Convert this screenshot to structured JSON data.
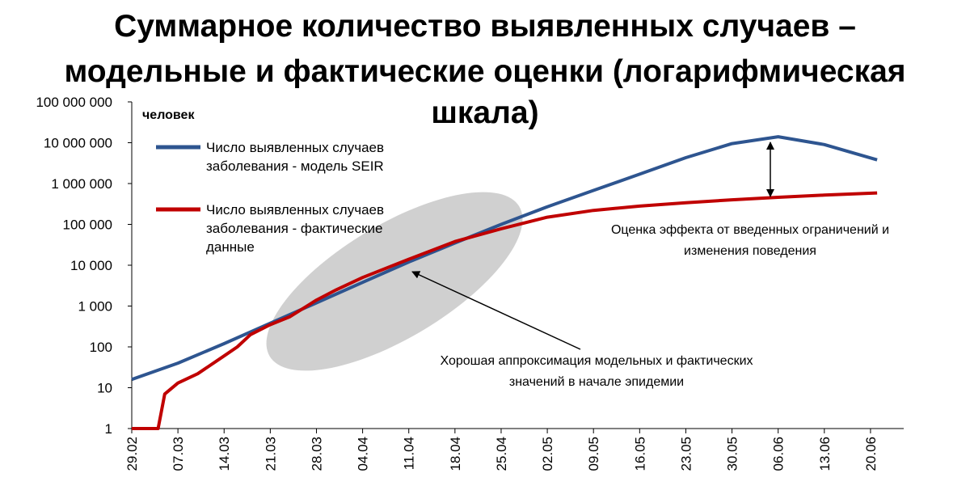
{
  "chart_data": {
    "type": "line",
    "title": [
      "Суммарное количество выявленных случаев –",
      "модельные и фактические оценки (логарифмическая",
      "шкала)"
    ],
    "ylabel": "человек",
    "yscale": "log",
    "ylim": [
      1,
      100000000
    ],
    "ytick_labels": [
      "1",
      "10",
      "100",
      "1 000",
      "10 000",
      "100 000",
      "1 000 000",
      "10 000 000",
      "100 000 000"
    ],
    "xtick_labels": [
      "29.02",
      "07.03",
      "14.03",
      "21.03",
      "28.03",
      "04.04",
      "11.04",
      "18.04",
      "25.04",
      "02.05",
      "09.05",
      "16.05",
      "23.05",
      "30.05",
      "06.06",
      "13.06",
      "20.06"
    ],
    "grid": false,
    "legend_placement": "top-left",
    "series": [
      {
        "name": "Число выявленных случаев заболевания - модель SEIR",
        "color": "#2e5590",
        "points": [
          [
            "29.02",
            16
          ],
          [
            "07.03",
            40
          ],
          [
            "14.03",
            120
          ],
          [
            "21.03",
            380
          ],
          [
            "28.03",
            1200
          ],
          [
            "04.04",
            3800
          ],
          [
            "11.04",
            12000
          ],
          [
            "18.04",
            35000
          ],
          [
            "25.04",
            100000
          ],
          [
            "02.05",
            270000
          ],
          [
            "09.05",
            680000
          ],
          [
            "16.05",
            1700000
          ],
          [
            "23.05",
            4300000
          ],
          [
            "30.05",
            9500000
          ],
          [
            "06.06",
            14000000
          ],
          [
            "13.06",
            9000000
          ],
          [
            "21.06",
            3800000
          ]
        ]
      },
      {
        "name": "Число выявленных случаев заболевания - фактические данные",
        "color": "#c00000",
        "points": [
          [
            "29.02",
            1
          ],
          [
            "01.03",
            1
          ],
          [
            "04.03",
            1
          ],
          [
            "05.03",
            7
          ],
          [
            "07.03",
            13
          ],
          [
            "10.03",
            22
          ],
          [
            "14.03",
            60
          ],
          [
            "16.03",
            100
          ],
          [
            "18.03",
            200
          ],
          [
            "21.03",
            350
          ],
          [
            "24.03",
            550
          ],
          [
            "28.03",
            1400
          ],
          [
            "31.03",
            2500
          ],
          [
            "04.04",
            5000
          ],
          [
            "11.04",
            14000
          ],
          [
            "18.04",
            38000
          ],
          [
            "25.04",
            78000
          ],
          [
            "02.05",
            150000
          ],
          [
            "09.05",
            220000
          ],
          [
            "16.05",
            280000
          ],
          [
            "23.05",
            340000
          ],
          [
            "30.05",
            400000
          ],
          [
            "06.06",
            460000
          ],
          [
            "13.06",
            520000
          ],
          [
            "21.06",
            590000
          ]
        ]
      }
    ],
    "annotations": {
      "effect": [
        "Оценка эффекта от введенных ограничений  и",
        "изменения поведения"
      ],
      "approximation": [
        "Хорошая  аппроксимация модельных и фактических",
        "значений в начале эпидемии"
      ]
    }
  }
}
